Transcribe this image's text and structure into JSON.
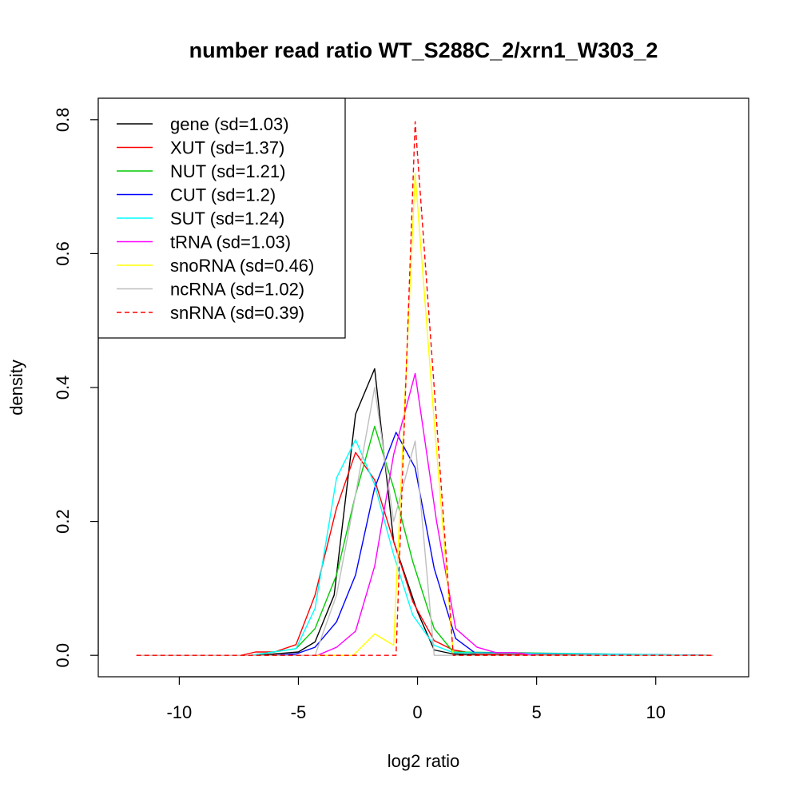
{
  "chart_data": {
    "type": "line",
    "title": "number read ratio WT_S288C_2/xrn1_W303_2",
    "xlabel": "log2 ratio",
    "ylabel": "density",
    "xlim": [
      -13.4,
      13.9
    ],
    "ylim": [
      -0.032,
      0.832
    ],
    "xticks": [
      -10,
      -5,
      0,
      5,
      10
    ],
    "xtick_labels": [
      "-10",
      "-5",
      "0",
      "5",
      "10"
    ],
    "yticks": [
      0.0,
      0.2,
      0.4,
      0.6,
      0.8
    ],
    "ytick_labels": [
      "0.0",
      "0.2",
      "0.4",
      "0.6",
      "0.8"
    ],
    "grid": false,
    "legend_position": "top-left",
    "series": [
      {
        "name": "gene (sd=1.03)",
        "color": "#000000",
        "dashed": false,
        "points": [
          [
            -11.8,
            0
          ],
          [
            -6.8,
            0
          ],
          [
            -6.0,
            0.002
          ],
          [
            -5.0,
            0.005
          ],
          [
            -4.3,
            0.02
          ],
          [
            -3.5,
            0.09
          ],
          [
            -2.6,
            0.36
          ],
          [
            -1.8,
            0.428
          ],
          [
            -1.0,
            0.17
          ],
          [
            0,
            0.065
          ],
          [
            0.7,
            0.008
          ],
          [
            1.5,
            0.002
          ],
          [
            2.5,
            0.001
          ],
          [
            12.4,
            0
          ]
        ]
      },
      {
        "name": "XUT (sd=1.37)",
        "color": "#ff0000",
        "dashed": false,
        "points": [
          [
            -11.8,
            0
          ],
          [
            -7.4,
            0
          ],
          [
            -6.8,
            0.005
          ],
          [
            -6.0,
            0.005
          ],
          [
            -5.1,
            0.016
          ],
          [
            -4.3,
            0.09
          ],
          [
            -3.4,
            0.22
          ],
          [
            -2.6,
            0.303
          ],
          [
            -1.8,
            0.262
          ],
          [
            -1.0,
            0.17
          ],
          [
            -0.2,
            0.08
          ],
          [
            0.7,
            0.022
          ],
          [
            1.5,
            0.008
          ],
          [
            2.5,
            0.002
          ],
          [
            12.4,
            0
          ]
        ]
      },
      {
        "name": "NUT (sd=1.21)",
        "color": "#00cc00",
        "dashed": false,
        "points": [
          [
            -11.8,
            0
          ],
          [
            -7.0,
            0
          ],
          [
            -5.1,
            0.01
          ],
          [
            -4.3,
            0.04
          ],
          [
            -3.4,
            0.12
          ],
          [
            -2.6,
            0.24
          ],
          [
            -1.8,
            0.342
          ],
          [
            -1.0,
            0.25
          ],
          [
            -0.2,
            0.14
          ],
          [
            0.7,
            0.04
          ],
          [
            1.5,
            0.005
          ],
          [
            12.4,
            0
          ]
        ]
      },
      {
        "name": "CUT (sd=1.2)",
        "color": "#0000ff",
        "dashed": false,
        "points": [
          [
            -11.8,
            0
          ],
          [
            -6.0,
            0
          ],
          [
            -5.1,
            0.002
          ],
          [
            -4.3,
            0.012
          ],
          [
            -3.4,
            0.05
          ],
          [
            -2.6,
            0.12
          ],
          [
            -1.8,
            0.25
          ],
          [
            -0.9,
            0.333
          ],
          [
            -0.1,
            0.28
          ],
          [
            0.7,
            0.13
          ],
          [
            1.6,
            0.025
          ],
          [
            2.4,
            0.004
          ],
          [
            12.4,
            0
          ]
        ]
      },
      {
        "name": "SUT (sd=1.24)",
        "color": "#00ffff",
        "dashed": false,
        "points": [
          [
            -11.8,
            0
          ],
          [
            -7.0,
            0
          ],
          [
            -5.1,
            0.01
          ],
          [
            -4.3,
            0.07
          ],
          [
            -3.4,
            0.265
          ],
          [
            -2.6,
            0.322
          ],
          [
            -1.8,
            0.255
          ],
          [
            -1.0,
            0.15
          ],
          [
            -0.2,
            0.06
          ],
          [
            0.7,
            0.015
          ],
          [
            1.5,
            0.004
          ],
          [
            12.4,
            0
          ]
        ]
      },
      {
        "name": "tRNA (sd=1.03)",
        "color": "#ff00ff",
        "dashed": false,
        "points": [
          [
            -11.8,
            0
          ],
          [
            -4.2,
            0
          ],
          [
            -3.4,
            0.012
          ],
          [
            -2.6,
            0.036
          ],
          [
            -1.8,
            0.133
          ],
          [
            -1.0,
            0.3
          ],
          [
            -0.1,
            0.421
          ],
          [
            0.8,
            0.2
          ],
          [
            1.6,
            0.04
          ],
          [
            2.5,
            0.012
          ],
          [
            3.3,
            0.004
          ],
          [
            4.1,
            0.004
          ],
          [
            5.0,
            0
          ],
          [
            12.4,
            0
          ]
        ]
      },
      {
        "name": "snoRNA (sd=0.46)",
        "color": "#ffff00",
        "dashed": false,
        "points": [
          [
            -11.8,
            0
          ],
          [
            -2.7,
            0
          ],
          [
            -1.8,
            0.032
          ],
          [
            -1.0,
            0.015
          ],
          [
            -0.1,
            0.72
          ],
          [
            0.7,
            0.35
          ],
          [
            1.5,
            0
          ],
          [
            12.4,
            0
          ]
        ]
      },
      {
        "name": "ncRNA (sd=1.02)",
        "color": "#bebebe",
        "dashed": false,
        "points": [
          [
            -11.8,
            0
          ],
          [
            -4.3,
            0
          ],
          [
            -3.4,
            0.09
          ],
          [
            -2.6,
            0.24
          ],
          [
            -1.8,
            0.4
          ],
          [
            -1.0,
            0.2
          ],
          [
            -0.1,
            0.32
          ],
          [
            0.7,
            0
          ],
          [
            12.4,
            0
          ]
        ]
      },
      {
        "name": "snRNA (sd=0.39)",
        "color": "#ff0000",
        "dashed": true,
        "points": [
          [
            -11.8,
            0
          ],
          [
            -0.9,
            0
          ],
          [
            -0.1,
            0.797
          ],
          [
            0.7,
            0.4
          ],
          [
            1.5,
            0
          ],
          [
            12.4,
            0
          ]
        ]
      }
    ]
  }
}
